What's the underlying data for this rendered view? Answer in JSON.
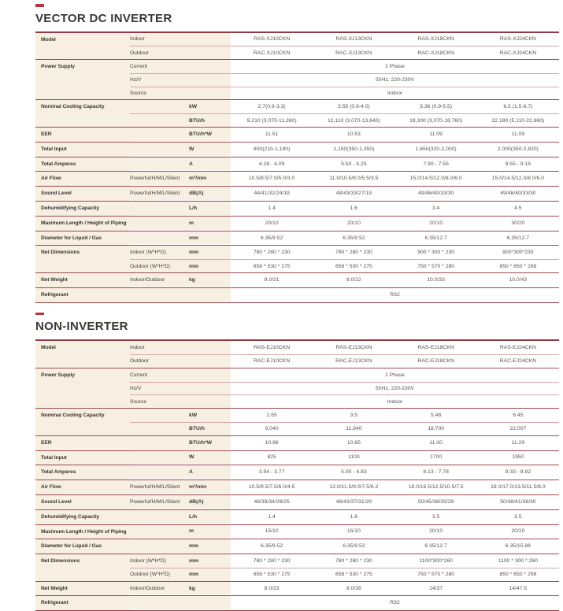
{
  "colors": {
    "accent_dash": "#b5323e",
    "label_background": "#f6efe2",
    "major_line": "#8e3b46",
    "minor_line": "#d5a8ad",
    "title_text": "#3b3734",
    "value_text": "#575250"
  },
  "sections": [
    {
      "title": "VECTOR DC INVERTER",
      "groups": [
        {
          "label": "Model",
          "rows": [
            {
              "sub": "Indoor",
              "unit": "",
              "values": [
                "RAS-XJ10CKN",
                "RAS-XJ13CKN",
                "RAS-XJ18CKN",
                "RAS-XJ24CKN"
              ]
            },
            {
              "sub": "Outdoor",
              "unit": "",
              "values": [
                "RAC-XJ10CKN",
                "RAC-XJ13CKN",
                "RAC-XJ18CKN",
                "RAC-XJ24CKN"
              ]
            }
          ]
        },
        {
          "label": "Power Supply",
          "rows": [
            {
              "sub": "Current",
              "unit": "",
              "span": "1 Phase"
            },
            {
              "sub": "Hz/V",
              "unit": "",
              "span": "50Hz, 220-230V"
            },
            {
              "sub": "Source",
              "unit": "",
              "span": "Indoor"
            }
          ]
        },
        {
          "label": "Nominal Cooling Capacity",
          "rows": [
            {
              "sub": "",
              "unit": "kW",
              "values": [
                "2.7(0.9-3.3)",
                "3.55 (0.9-4.0)",
                "5.36 (0.9-5.5)",
                "6.5  (1.5-6.7)"
              ]
            },
            {
              "sub": "",
              "unit": "BTU/h",
              "values": [
                "9,210 (3,070-11,260)",
                "12,110 (3,070-13,640)",
                "18,300 (3,070-18,760)",
                "22,180 (5,110-22,860)"
              ]
            }
          ]
        },
        {
          "label": "EER",
          "rows": [
            {
              "sub": "",
              "unit": "BTU/h*W",
              "values": [
                "11.51",
                "10.53",
                "11.09",
                "11.09"
              ]
            }
          ]
        },
        {
          "label": "Total Input",
          "rows": [
            {
              "sub": "",
              "unit": "W",
              "values": [
                "800(210-1,190)",
                "1,150(350-1,350)",
                "1,650(320-2,000)",
                "2,000(350-2,820)"
              ]
            }
          ]
        },
        {
          "label": "Total Amperes",
          "rows": [
            {
              "sub": "",
              "unit": "A",
              "values": [
                "4.28 - 4.09",
                "5.50 - 5.25",
                "7.90 - 7.55",
                "9.55 - 9.15"
              ]
            }
          ]
        },
        {
          "label": "Air Flow",
          "rows": [
            {
              "sub": "Powerful/H/M/L/Silent",
              "unit": "m³/min",
              "values": [
                "10.5/8.5/7.0/5.0/3.0",
                "11.0/10.5/8.0/5.5/3.5",
                "15.0/14.5/12.0/8.0/6.0",
                "15.0/14.5/12.0/8.0/6.0"
              ]
            }
          ]
        },
        {
          "label": "Sound Level",
          "rows": [
            {
              "sub": "Powerful/H/M/L/Silent",
              "unit": "dB(A)",
              "values": [
                "44/41/32/24/19",
                "48/43/33/27/19",
                "49/48/40/33/30",
                "49/48/40/33/30"
              ]
            }
          ]
        },
        {
          "label": "Dehumidifying Capacity",
          "rows": [
            {
              "sub": "",
              "unit": "L/h",
              "values": [
                "1.4",
                "1.6",
                "3.4",
                "4.5"
              ]
            }
          ]
        },
        {
          "label": "Maximum Length / Height of Piping",
          "rows": [
            {
              "sub": "",
              "unit": "m",
              "values": [
                "20/10",
                "20/10",
                "20/10",
                "30/20"
              ]
            }
          ]
        },
        {
          "label": "Diameter for Liquid / Gas",
          "rows": [
            {
              "sub": "",
              "unit": "mm",
              "values": [
                "6.35/9.52",
                "6.35/9.52",
                "6.35/12.7",
                "6.35/12.7"
              ]
            }
          ]
        },
        {
          "label": "Net Dimensions",
          "rows": [
            {
              "sub": "Indoor (W*H*D)",
              "unit": "mm",
              "values": [
                "780 * 280 * 230",
                "780 * 280 * 230",
                "900 * 300 * 230",
                "900*300*230"
              ]
            },
            {
              "sub": "Outdoor (W*H*D)",
              "unit": "mm",
              "values": [
                "658 * 530 * 275",
                "658 * 530 * 275",
                "750 * 570 * 280",
                "850 * 650 * 298"
              ]
            }
          ]
        },
        {
          "label": "Net Weight",
          "rows": [
            {
              "sub": "Indoor/Outdoor",
              "unit": "kg",
              "values": [
                "8.0/21",
                "8.0/22",
                "10.0/33",
                "10.0/43"
              ]
            }
          ]
        },
        {
          "label": "Refrigerant",
          "rows": [
            {
              "sub": "",
              "unit": "",
              "span": "R32"
            }
          ]
        }
      ]
    },
    {
      "title": "NON-INVERTER",
      "groups": [
        {
          "label": "Model",
          "rows": [
            {
              "sub": "Indoor",
              "unit": "",
              "values": [
                "RAS-EJ10CKN",
                "RAS-EJ13CKN",
                "RAS-EJ18CKN",
                "RAS-EJ24CKN"
              ]
            },
            {
              "sub": "Outdoor",
              "unit": "",
              "values": [
                "RAC-EJ10CKN",
                "RAC-EJ13CKN",
                "RAC-EJ18CKN",
                "RAC-EJ24CKN"
              ]
            }
          ]
        },
        {
          "label": "Power Supply",
          "rows": [
            {
              "sub": "Current",
              "unit": "",
              "span": "1 Phase"
            },
            {
              "sub": "Hz/V",
              "unit": "",
              "span": "50Hz, 220-230V"
            },
            {
              "sub": "Source",
              "unit": "",
              "span": "Indoor"
            }
          ]
        },
        {
          "label": "Nominal Cooling Capacity",
          "rows": [
            {
              "sub": "",
              "unit": "kW",
              "values": [
                "2.65",
                "3.5",
                "5.48",
                "6.45"
              ]
            },
            {
              "sub": "",
              "unit": "BTU/h",
              "values": [
                "9,040",
                "11,940",
                "18,700",
                "22,007"
              ]
            }
          ]
        },
        {
          "label": "EER",
          "rows": [
            {
              "sub": "",
              "unit": "BTU/h*W",
              "values": [
                "10.96",
                "10.85",
                "11.00",
                "11.29"
              ]
            }
          ]
        },
        {
          "label": "Total Input",
          "rows": [
            {
              "sub": "",
              "unit": "W",
              "values": [
                "825",
                "1100",
                "1700",
                "1950"
              ]
            }
          ]
        },
        {
          "label": "Total Amperes",
          "rows": [
            {
              "sub": "",
              "unit": "A",
              "values": [
                "3.94 - 3.77",
                "5.05 - 4.83",
                "8.13 - 7.78",
                "9.33 - 8.92"
              ]
            }
          ]
        },
        {
          "label": "Air Flow",
          "rows": [
            {
              "sub": "Powerful/H/M/L/Silent",
              "unit": "m³/min",
              "values": [
                "10.5/9.5/7.5/6.0/4.5",
                "12.0/11.5/9.0/7.5/6.2",
                "18.0/16.5/12.5/10.5/7.5",
                "18.0/17.0/13.5/11.5/8.0"
              ]
            }
          ]
        },
        {
          "label": "Sound Level",
          "rows": [
            {
              "sub": "Powerful/H/M/L/Silent",
              "unit": "dB(A)",
              "values": [
                "46/39/34/28/25",
                "48/43/37/31/29",
                "50/45/38/35/29",
                "50/48/41/36/30"
              ]
            }
          ]
        },
        {
          "label": "Dehumidifying Capacity",
          "rows": [
            {
              "sub": "",
              "unit": "L/h",
              "values": [
                "1.4",
                "1.8",
                "3.5",
                "3.5"
              ]
            }
          ]
        },
        {
          "label": "Maximum Length / Height of Piping",
          "rows": [
            {
              "sub": "",
              "unit": "m",
              "values": [
                "15/10",
                "15/10",
                "20/10",
                "20/10"
              ]
            }
          ]
        },
        {
          "label": "Diameter for Liquid / Gas",
          "rows": [
            {
              "sub": "",
              "unit": "mm",
              "values": [
                "6.35/9.52",
                "6.35/9.52",
                "6.35/12.7",
                "6.35/15.88"
              ]
            }
          ]
        },
        {
          "label": "Net Dimensions",
          "rows": [
            {
              "sub": "Indoor (W*H*D)",
              "unit": "mm",
              "values": [
                "780 * 280 * 230",
                "780 * 280 * 230",
                "1100*300*260",
                "1100 * 300 * 260"
              ]
            },
            {
              "sub": "Outdoor (W*H*D)",
              "unit": "mm",
              "values": [
                "658 * 530 * 275",
                "658 * 530 * 275",
                "750 * 570 * 280",
                "850 * 650 * 298"
              ]
            }
          ]
        },
        {
          "label": "Net Weight",
          "rows": [
            {
              "sub": "Indoor/Outdoor",
              "unit": "kg",
              "values": [
                "8.0/23",
                "8.0/26",
                "14/37",
                "14/47.5"
              ]
            }
          ]
        },
        {
          "label": "Refrigerant",
          "rows": [
            {
              "sub": "",
              "unit": "",
              "span": "R32"
            }
          ]
        }
      ]
    }
  ]
}
